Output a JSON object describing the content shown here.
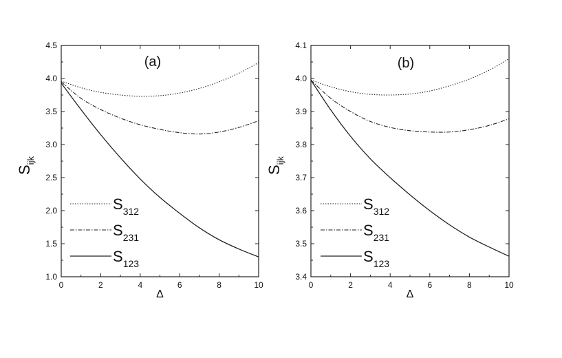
{
  "chart_data": [
    {
      "type": "line",
      "panel_label": "(a)",
      "xlabel": "Δ",
      "ylabel_main": "S",
      "ylabel_sub": "ijk",
      "xlim": [
        0,
        10
      ],
      "ylim": [
        1.0,
        4.5
      ],
      "xticks": [
        0,
        2,
        4,
        6,
        8,
        10
      ],
      "yticks": [
        1.0,
        1.5,
        2.0,
        2.5,
        3.0,
        3.5,
        4.0,
        4.5
      ],
      "series": [
        {
          "name_main": "S",
          "name_sub": "312",
          "style": "dotted",
          "x": [
            0,
            1,
            2,
            3,
            4,
            5,
            6,
            7,
            8,
            9,
            10
          ],
          "y": [
            3.96,
            3.86,
            3.79,
            3.75,
            3.73,
            3.74,
            3.78,
            3.85,
            3.95,
            4.08,
            4.24
          ]
        },
        {
          "name_main": "S",
          "name_sub": "231",
          "style": "dashdot",
          "x": [
            0,
            1,
            2,
            3,
            4,
            5,
            6,
            7,
            8,
            9,
            10
          ],
          "y": [
            3.95,
            3.7,
            3.53,
            3.4,
            3.3,
            3.23,
            3.18,
            3.16,
            3.19,
            3.26,
            3.36
          ]
        },
        {
          "name_main": "S",
          "name_sub": "123",
          "style": "solid",
          "x": [
            0,
            1,
            2,
            3,
            4,
            5,
            6,
            7,
            8,
            9,
            10
          ],
          "y": [
            3.93,
            3.53,
            3.15,
            2.8,
            2.48,
            2.2,
            1.96,
            1.74,
            1.56,
            1.42,
            1.3
          ]
        }
      ]
    },
    {
      "type": "line",
      "panel_label": "(b)",
      "xlabel": "Δ",
      "ylabel_main": "S",
      "ylabel_sub": "ijk",
      "xlim": [
        0,
        10
      ],
      "ylim": [
        3.4,
        4.1
      ],
      "xticks": [
        0,
        2,
        4,
        6,
        8,
        10
      ],
      "yticks": [
        3.4,
        3.5,
        3.6,
        3.7,
        3.8,
        3.9,
        4.0,
        4.1
      ],
      "series": [
        {
          "name_main": "S",
          "name_sub": "312",
          "style": "dotted",
          "x": [
            0,
            1,
            2,
            3,
            4,
            5,
            6,
            7,
            8,
            9,
            10
          ],
          "y": [
            3.995,
            3.975,
            3.96,
            3.952,
            3.95,
            3.953,
            3.962,
            3.978,
            3.998,
            4.025,
            4.06
          ]
        },
        {
          "name_main": "S",
          "name_sub": "231",
          "style": "dashdot",
          "x": [
            0,
            1,
            2,
            3,
            4,
            5,
            6,
            7,
            8,
            9,
            10
          ],
          "y": [
            3.995,
            3.94,
            3.9,
            3.87,
            3.852,
            3.842,
            3.838,
            3.838,
            3.845,
            3.858,
            3.878
          ]
        },
        {
          "name_main": "S",
          "name_sub": "123",
          "style": "solid",
          "x": [
            0,
            1,
            2,
            3,
            4,
            5,
            6,
            7,
            8,
            9,
            10
          ],
          "y": [
            3.995,
            3.905,
            3.825,
            3.757,
            3.7,
            3.648,
            3.6,
            3.557,
            3.52,
            3.49,
            3.462
          ]
        }
      ]
    }
  ]
}
